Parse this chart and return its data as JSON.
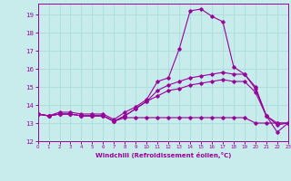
{
  "title": "",
  "xlabel": "Windchill (Refroidissement éolien,°C)",
  "ylabel": "",
  "bg_color": "#c8ecec",
  "line_color": "#990099",
  "grid_color": "#aadddd",
  "hours": [
    0,
    1,
    2,
    3,
    4,
    5,
    6,
    7,
    8,
    9,
    10,
    11,
    12,
    13,
    14,
    15,
    16,
    17,
    18,
    19,
    20,
    21,
    22,
    23
  ],
  "line1": [
    13.5,
    13.4,
    13.6,
    13.6,
    13.5,
    13.5,
    13.5,
    13.2,
    13.6,
    13.9,
    14.3,
    15.3,
    15.5,
    17.1,
    19.2,
    19.3,
    18.9,
    18.6,
    16.1,
    15.7,
    14.9,
    13.4,
    12.5,
    13.0
  ],
  "line2": [
    13.5,
    13.4,
    13.5,
    13.5,
    13.4,
    13.4,
    13.4,
    13.1,
    13.4,
    13.8,
    14.2,
    14.8,
    15.1,
    15.3,
    15.5,
    15.6,
    15.7,
    15.8,
    15.7,
    15.7,
    15.0,
    13.4,
    12.9,
    13.0
  ],
  "line3": [
    13.5,
    13.4,
    13.5,
    13.5,
    13.4,
    13.4,
    13.4,
    13.1,
    13.4,
    13.8,
    14.2,
    14.5,
    14.8,
    14.9,
    15.1,
    15.2,
    15.3,
    15.4,
    15.3,
    15.3,
    14.7,
    13.4,
    13.0,
    13.0
  ],
  "line4": [
    13.5,
    13.4,
    13.5,
    13.5,
    13.4,
    13.4,
    13.4,
    13.1,
    13.3,
    13.3,
    13.3,
    13.3,
    13.3,
    13.3,
    13.3,
    13.3,
    13.3,
    13.3,
    13.3,
    13.3,
    13.0,
    13.0,
    13.0,
    13.0
  ],
  "ylim": [
    12,
    19.6
  ],
  "xlim": [
    0,
    23
  ],
  "yticks": [
    12,
    13,
    14,
    15,
    16,
    17,
    18,
    19
  ],
  "xticks": [
    0,
    1,
    2,
    3,
    4,
    5,
    6,
    7,
    8,
    9,
    10,
    11,
    12,
    13,
    14,
    15,
    16,
    17,
    18,
    19,
    20,
    21,
    22,
    23
  ]
}
